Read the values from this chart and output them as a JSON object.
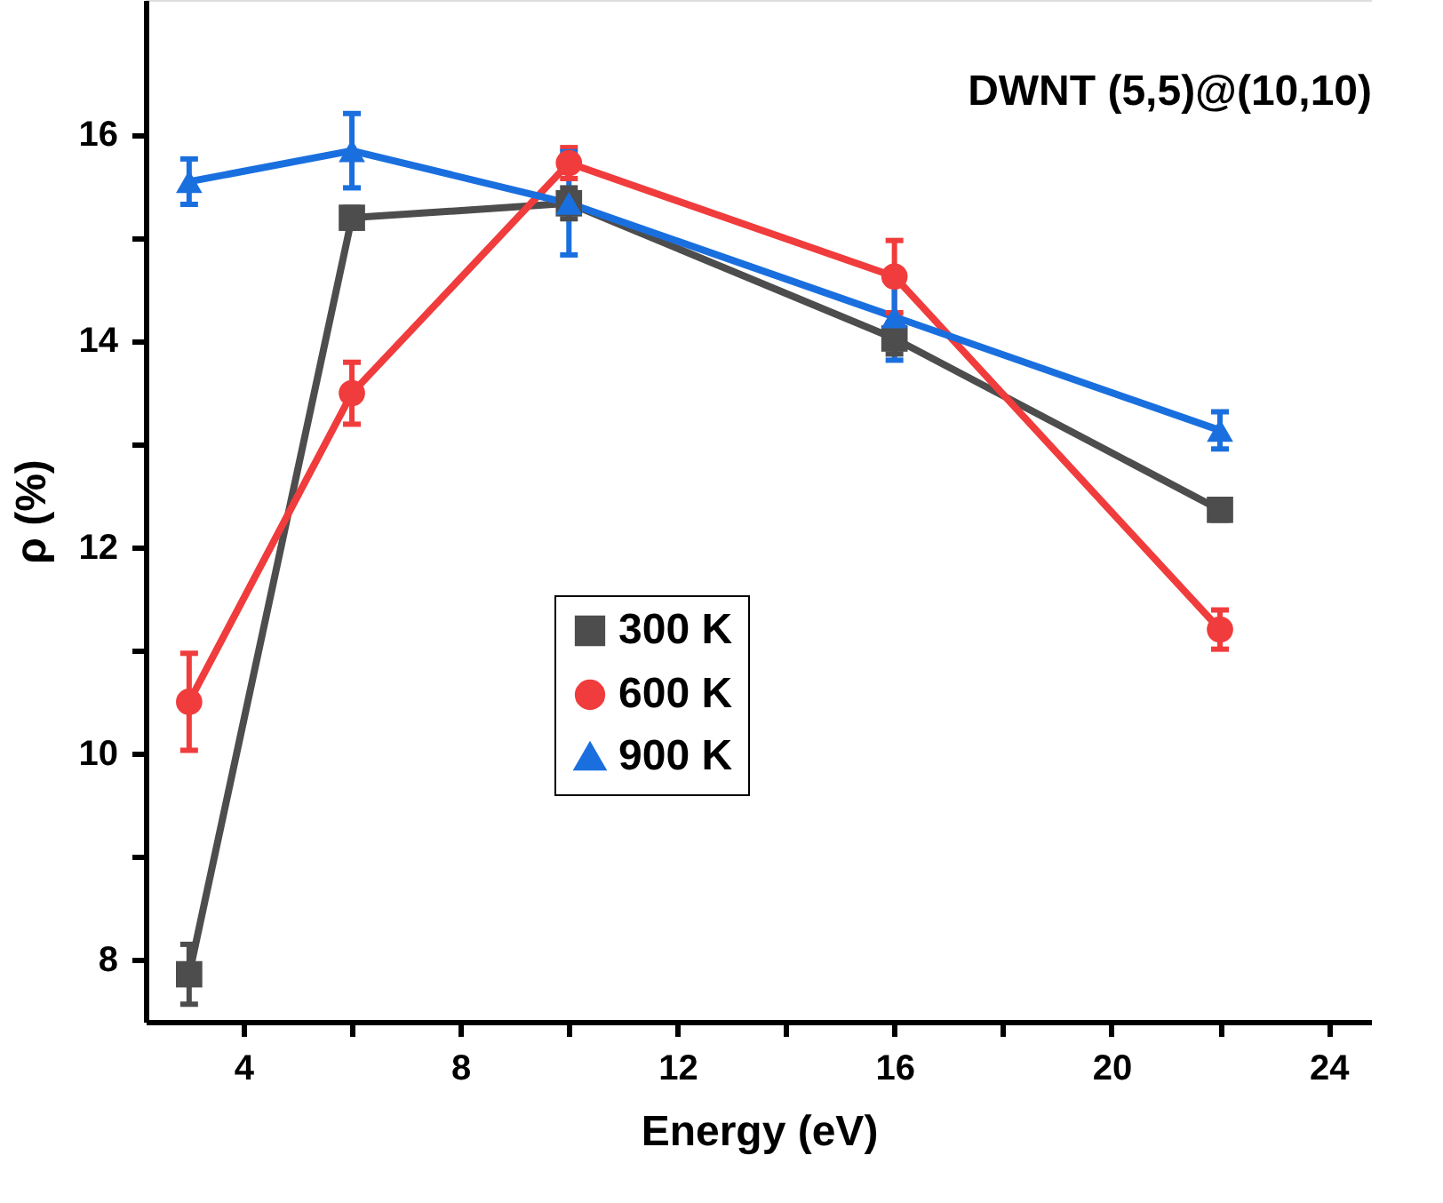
{
  "chart_data": {
    "type": "line",
    "xlabel": "Energy (eV)",
    "ylabel": "ρ (%)",
    "annotations": [
      "DWNT (5,5)@(10,10)"
    ],
    "xlim": [
      2.2,
      24.8
    ],
    "ylim": [
      7.4,
      17.3
    ],
    "xticks": [
      4,
      {
        "value": 6,
        "label": null
      },
      8,
      {
        "value": 10,
        "label": null
      },
      12,
      {
        "value": 14,
        "label": null
      },
      16,
      {
        "value": 18,
        "label": null
      },
      20,
      {
        "value": 22,
        "label": null
      },
      24
    ],
    "yticks": [
      8,
      {
        "value": 9,
        "label": null
      },
      10,
      {
        "value": 11,
        "label": null
      },
      12,
      {
        "value": 13,
        "label": null
      },
      14,
      {
        "value": 15,
        "label": null
      },
      16
    ],
    "grid": false,
    "legend": "center",
    "line_style": "solid",
    "series": [
      {
        "name": "300 K",
        "color": "#4d4d4d",
        "marker": "square",
        "x": [
          3,
          6,
          10,
          16,
          22
        ],
        "values": [
          7.86,
          15.19,
          15.33,
          14.02,
          12.36
        ],
        "errors": [
          0.29,
          0.1,
          0.15,
          0.15,
          0.1
        ]
      },
      {
        "name": "600 K",
        "color": "#f03c3c",
        "marker": "circle",
        "x": [
          3,
          6,
          10,
          16,
          22
        ],
        "values": [
          10.5,
          13.49,
          15.72,
          14.62,
          11.2
        ],
        "errors": [
          0.47,
          0.3,
          0.15,
          0.35,
          0.19
        ]
      },
      {
        "name": "900 K",
        "color": "#1a6fdf",
        "marker": "triangle",
        "x": [
          3,
          6,
          10,
          16,
          22
        ],
        "values": [
          15.54,
          15.84,
          15.33,
          14.23,
          13.13
        ],
        "errors": [
          0.22,
          0.36,
          0.5,
          0.42,
          0.18
        ]
      }
    ]
  }
}
